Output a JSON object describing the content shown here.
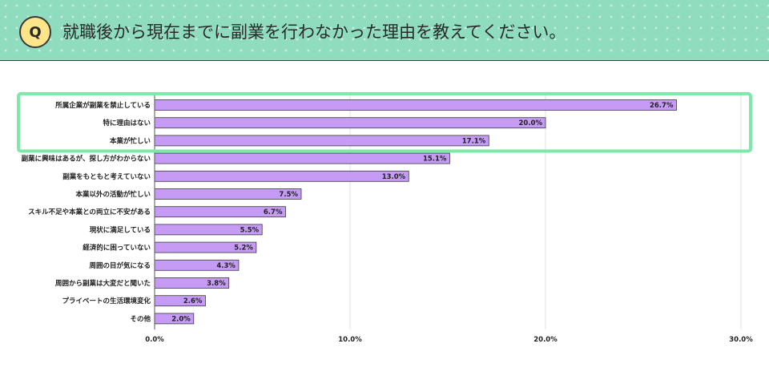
{
  "header": {
    "badge": "Q",
    "question": "就職後から現在までに副業を行わなかった理由を教えてください。"
  },
  "colors": {
    "header_bg": "#8fdcbf",
    "badge_bg": "#fde58a",
    "bar_fill": "#c59bf5",
    "bar_stroke": "#3a3a3a",
    "highlight_border": "#7ee8a8"
  },
  "chart_data": {
    "type": "bar",
    "orientation": "horizontal",
    "categories": [
      "所属企業が副業を禁止している",
      "特に理由はない",
      "本業が忙しい",
      "副業に興味はあるが、探し方がわからない",
      "副業をもともと考えていない",
      "本業以外の活動が忙しい",
      "スキル不足や本業との両立に不安がある",
      "現状に満足している",
      "経済的に困っていない",
      "周囲の目が気になる",
      "周囲から副業は大変だと聞いた",
      "プライベートの生活環境変化",
      "その他"
    ],
    "values": [
      26.7,
      20.0,
      17.1,
      15.1,
      13.0,
      7.5,
      6.7,
      5.5,
      5.2,
      4.3,
      3.8,
      2.6,
      2.0
    ],
    "value_labels": [
      "26.7%",
      "20.0%",
      "17.1%",
      "15.1%",
      "13.0%",
      "7.5%",
      "6.7%",
      "5.5%",
      "5.2%",
      "4.3%",
      "3.8%",
      "2.6%",
      "2.0%"
    ],
    "xlim": [
      0,
      30
    ],
    "xticks": [
      0,
      10,
      20,
      30
    ],
    "xtick_labels": [
      "0.0%",
      "10.0%",
      "20.0%",
      "30.0%"
    ],
    "grid": true,
    "highlighted_rows": 3
  }
}
